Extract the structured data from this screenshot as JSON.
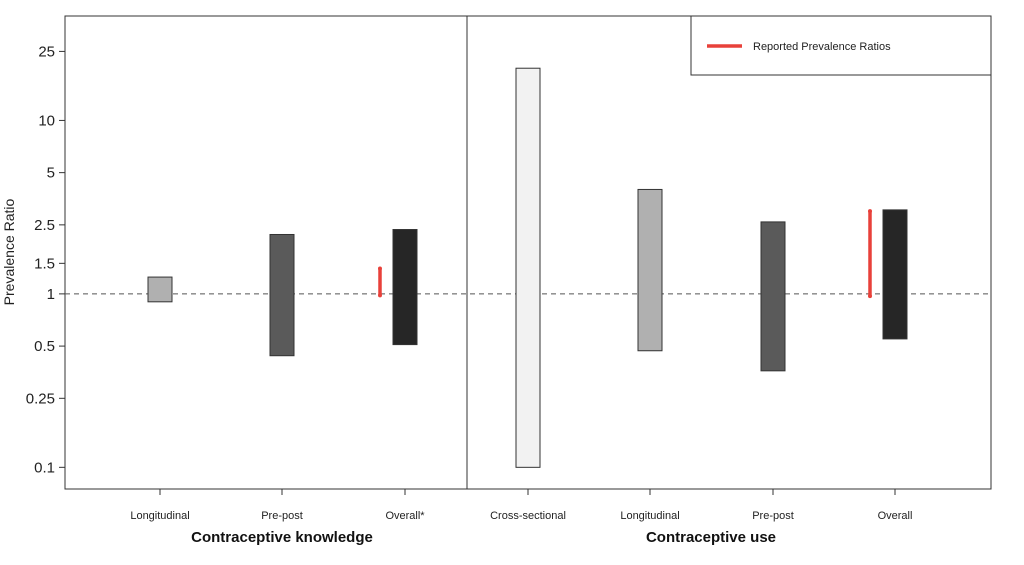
{
  "chart_data": {
    "type": "bar",
    "yscale": "log",
    "ylabel": "Prevalence Ratio",
    "ylim": [
      0.075,
      40
    ],
    "yticks": [
      0.1,
      0.25,
      0.5,
      1,
      1.5,
      2.5,
      5,
      10,
      25
    ],
    "ytick_labels": [
      "0.1",
      "0.25",
      "0.5",
      "1",
      "1.5",
      "2.5",
      "5",
      "10",
      "25"
    ],
    "reference_line": 1,
    "categories": [
      "Longitudinal",
      "Pre-post",
      "Overall*",
      "Cross-sectional",
      "Longitudinal",
      "Pre-post",
      "Overall"
    ],
    "panels": [
      {
        "label": "Contraceptive knowledge",
        "items": [
          {
            "category": "Longitudinal",
            "low": 0.9,
            "high": 1.25,
            "color": "#b0b0b0"
          },
          {
            "category": "Pre-post",
            "low": 0.44,
            "high": 2.2,
            "color": "#5a5a5a"
          },
          {
            "category": "Overall*",
            "low": 0.51,
            "high": 2.35,
            "color": "#262626",
            "reported": {
              "low": 0.98,
              "high": 1.4
            }
          }
        ]
      },
      {
        "label": "Contraceptive use",
        "items": [
          {
            "category": "Cross-sectional",
            "low": 0.1,
            "high": 20,
            "color": "#f2f2f2"
          },
          {
            "category": "Longitudinal",
            "low": 0.47,
            "high": 4.0,
            "color": "#b0b0b0"
          },
          {
            "category": "Pre-post",
            "low": 0.36,
            "high": 2.6,
            "color": "#5a5a5a"
          },
          {
            "category": "Overall",
            "low": 0.55,
            "high": 3.05,
            "color": "#262626",
            "reported": {
              "low": 0.97,
              "high": 3.0
            }
          }
        ]
      }
    ],
    "legend": {
      "position": "top-right",
      "label": "Reported Prevalence Ratios",
      "color": "#e8413a"
    }
  }
}
